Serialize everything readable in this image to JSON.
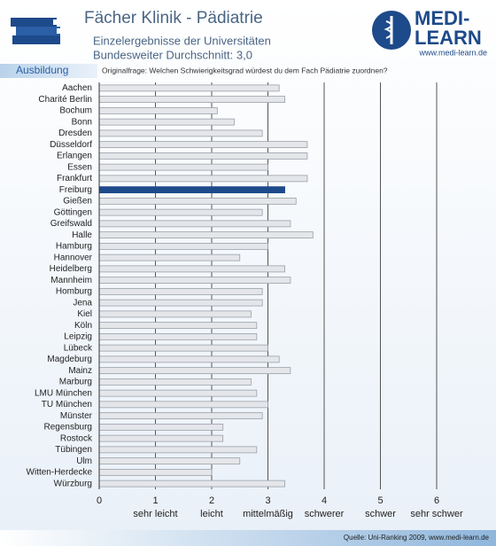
{
  "header": {
    "title": "Fächer Klinik - Pädiatrie",
    "subtitle": "Einzelergebnisse der Universitäten",
    "average": "Bundesweiter Durchschnitt: 3,0",
    "tab": "Ausbildung",
    "question": "Originalfrage: Welchen Schwierigkeitsgrad würdest du dem Fach Pädiatrie zuordnen?"
  },
  "logo": {
    "line1": "MEDI-",
    "line2": "LEARN",
    "url": "www.medi-learn.de"
  },
  "source": "Quelle: Uni-Ranking 2009, www.medi-learn.de",
  "chart_data": {
    "type": "hbar",
    "categories": [
      "Aachen",
      "Charité Berlin",
      "Bochum",
      "Bonn",
      "Dresden",
      "Düsseldorf",
      "Erlangen",
      "Essen",
      "Frankfurt",
      "Freiburg",
      "Gießen",
      "Göttingen",
      "Greifswald",
      "Halle",
      "Hamburg",
      "Hannover",
      "Heidelberg",
      "Mannheim",
      "Homburg",
      "Jena",
      "Kiel",
      "Köln",
      "Leipzig",
      "Lübeck",
      "Magdeburg",
      "Mainz",
      "Marburg",
      "LMU München",
      "TU München",
      "Münster",
      "Regensburg",
      "Rostock",
      "Tübingen",
      "Ulm",
      "Witten-Herdecke",
      "Würzburg"
    ],
    "values": [
      3.2,
      3.3,
      2.1,
      2.4,
      2.9,
      3.7,
      3.7,
      3.0,
      3.7,
      3.3,
      3.5,
      2.9,
      3.4,
      3.8,
      3.0,
      2.5,
      3.3,
      3.4,
      2.9,
      2.9,
      2.7,
      2.8,
      2.8,
      3.0,
      3.2,
      3.4,
      2.7,
      2.8,
      3.0,
      2.9,
      2.2,
      2.2,
      2.8,
      2.5,
      2.0,
      3.3
    ],
    "color": "#e4e6ea",
    "highlight_category": "Freiburg",
    "highlight_color": "#1d4a8a",
    "xlim": [
      0,
      6
    ],
    "xticks": [
      0,
      1,
      2,
      3,
      4,
      5,
      6
    ],
    "scale_labels": [
      {
        "value": 1,
        "label": "sehr leicht"
      },
      {
        "value": 2,
        "label": "leicht"
      },
      {
        "value": 3,
        "label": "mittelmäßig"
      },
      {
        "value": 4,
        "label": "schwerer"
      },
      {
        "value": 5,
        "label": "schwer"
      },
      {
        "value": 6,
        "label": "sehr schwer"
      }
    ],
    "grid": true
  }
}
